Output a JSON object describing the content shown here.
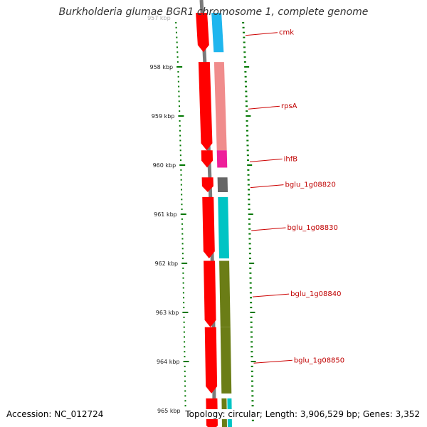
{
  "title": "Burkholderia glumae BGR1 chromosome 1, complete genome",
  "ticks": [
    {
      "kbp": 957,
      "label": "957 kbp"
    },
    {
      "kbp": 958,
      "label": "958 kbp"
    },
    {
      "kbp": 959,
      "label": "959 kbp"
    },
    {
      "kbp": 960,
      "label": "960 kbp"
    },
    {
      "kbp": 961,
      "label": "961 kbp"
    },
    {
      "kbp": 962,
      "label": "962 kbp"
    },
    {
      "kbp": 963,
      "label": "963 kbp"
    },
    {
      "kbp": 964,
      "label": "964 kbp"
    },
    {
      "kbp": 965,
      "label": "965 kbp"
    }
  ],
  "genes": [
    {
      "name": "cmk",
      "start_kbp": 956.9,
      "end_kbp": 957.7,
      "color": "#1fb6ee"
    },
    {
      "name": "rpsA",
      "start_kbp": 957.9,
      "end_kbp": 959.7,
      "color": "#f08c8c"
    },
    {
      "name": "ihfB",
      "start_kbp": 959.7,
      "end_kbp": 960.05,
      "color": "#ee1f9a"
    },
    {
      "name": "bglu_1g08820",
      "start_kbp": 960.25,
      "end_kbp": 960.55,
      "color": "#666666"
    },
    {
      "name": "bglu_1g08830",
      "start_kbp": 960.65,
      "end_kbp": 961.9,
      "color": "#00c4c4"
    },
    {
      "name": "bglu_1g08840",
      "start_kbp": 961.95,
      "end_kbp": 963.3,
      "color": "#6b7d16"
    },
    {
      "name": "bglu_1g08850",
      "start_kbp": 963.3,
      "end_kbp": 964.65,
      "color": "#6b7d16"
    }
  ],
  "colors": {
    "cds_ring": "#ff0000",
    "backbone": "#808080",
    "tick": "#007700",
    "label": "#cc0000"
  },
  "footer": {
    "accession": "Accession: NC_012724",
    "stats": "Topology: circular; Length: 3,906,529 bp; Genes: 3,352"
  }
}
